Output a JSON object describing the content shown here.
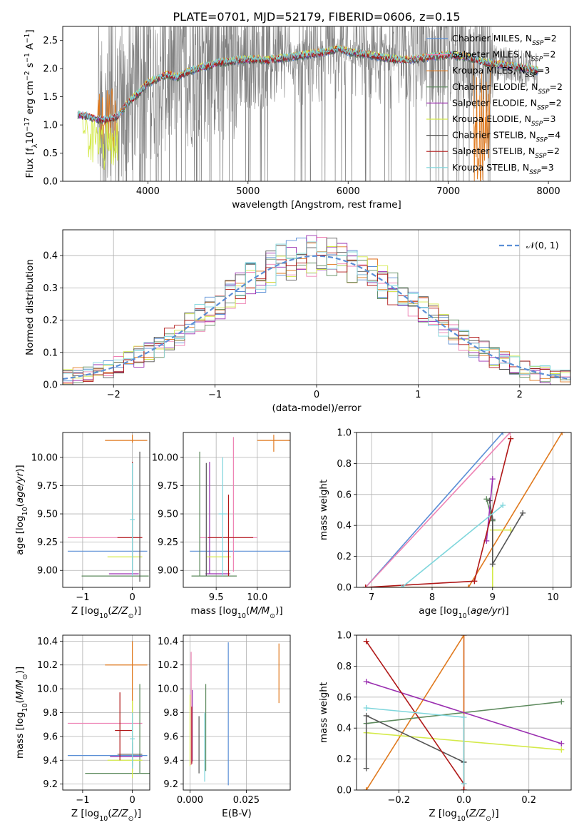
{
  "figure": {
    "title": "PLATE=0701, MJD=52179, FIBERID=0606, z=0.15"
  },
  "colors": {
    "Chabrier MILES": "#5b8fd6",
    "Salpeter MILES": "#ee82b4",
    "Kroupa MILES": "#e07a1f",
    "Chabrier ELODIE": "#5d8a5d",
    "Salpeter ELODIE": "#9a2fb0",
    "Kroupa ELODIE": "#d4ea4a",
    "Chabrier STELIB": "#555555",
    "Salpeter STELIB": "#b01818",
    "Kroupa STELIB": "#7fd6dc",
    "data": "#7f7f7f",
    "gauss": "#5b8fd6"
  },
  "chart_data": [
    {
      "id": "spectrum",
      "type": "line",
      "xlabel": "wavelength [Angstrom, rest frame]",
      "ylabel": "Flux [f_λ10^-17 erg cm^-2 s^-1 A^-1]",
      "xlim": [
        3150,
        8220
      ],
      "ylim": [
        0,
        2.75
      ],
      "xticks": [
        4000,
        5000,
        6000,
        7000,
        8000
      ],
      "yticks": [
        0.0,
        0.5,
        1.0,
        1.5,
        2.0,
        2.5
      ],
      "legend": "upper-right",
      "data_series": {
        "name": "data",
        "x_range": [
          3300,
          7900
        ]
      },
      "continuum_points": [
        [
          3300,
          1.18
        ],
        [
          3400,
          1.15
        ],
        [
          3500,
          1.1
        ],
        [
          3600,
          1.1
        ],
        [
          3700,
          1.15
        ],
        [
          3800,
          1.4
        ],
        [
          3900,
          1.55
        ],
        [
          4000,
          1.75
        ],
        [
          4100,
          1.82
        ],
        [
          4200,
          1.9
        ],
        [
          4300,
          1.85
        ],
        [
          4400,
          1.95
        ],
        [
          4500,
          2.0
        ],
        [
          4700,
          2.1
        ],
        [
          4900,
          2.15
        ],
        [
          5100,
          2.17
        ],
        [
          5200,
          2.15
        ],
        [
          5400,
          2.2
        ],
        [
          5600,
          2.25
        ],
        [
          5800,
          2.3
        ],
        [
          5900,
          2.35
        ],
        [
          6000,
          2.3
        ],
        [
          6200,
          2.25
        ],
        [
          6400,
          2.18
        ],
        [
          6600,
          2.15
        ],
        [
          6800,
          2.2
        ],
        [
          7000,
          2.25
        ],
        [
          7200,
          2.2
        ],
        [
          7400,
          2.1
        ],
        [
          7600,
          2.05
        ],
        [
          7800,
          2.0
        ],
        [
          7900,
          1.95
        ]
      ],
      "legend_entries": [
        {
          "name": "Chabrier MILES",
          "label": "Chabrier MILES, N",
          "sub": "SSP",
          "suffix": "=2"
        },
        {
          "name": "Salpeter MILES",
          "label": "Salpeter MILES, N",
          "sub": "SSP",
          "suffix": "=2"
        },
        {
          "name": "Kroupa MILES",
          "label": "Kroupa MILES, N",
          "sub": "SSP",
          "suffix": "=3"
        },
        {
          "name": "Chabrier ELODIE",
          "label": "Chabrier ELODIE, N",
          "sub": "SSP",
          "suffix": "=2"
        },
        {
          "name": "Salpeter ELODIE",
          "label": "Salpeter ELODIE, N",
          "sub": "SSP",
          "suffix": "=2"
        },
        {
          "name": "Kroupa ELODIE",
          "label": "Kroupa ELODIE, N",
          "sub": "SSP",
          "suffix": "=3"
        },
        {
          "name": "Chabrier STELIB",
          "label": "Chabrier STELIB, N",
          "sub": "SSP",
          "suffix": "=4"
        },
        {
          "name": "Salpeter STELIB",
          "label": "Salpeter STELIB, N",
          "sub": "SSP",
          "suffix": "=2"
        },
        {
          "name": "Kroupa STELIB",
          "label": "Kroupa STELIB, N",
          "sub": "SSP",
          "suffix": "=3"
        }
      ]
    },
    {
      "id": "residuals",
      "type": "line",
      "xlabel": "(data-model)/error",
      "ylabel": "Normed distribution",
      "xlim": [
        -2.5,
        2.5
      ],
      "ylim": [
        0,
        0.48
      ],
      "xticks": [
        -2,
        -1,
        0,
        1,
        2
      ],
      "yticks": [
        0.0,
        0.1,
        0.2,
        0.3,
        0.4
      ],
      "legend": "upper-right",
      "legend_label": "𝒩(0, 1)",
      "bin_width": 0.1,
      "grid": true
    },
    {
      "id": "age_vs_Z",
      "type": "scatter",
      "xlabel": "Z [log10(Z/Z_sun)]",
      "ylabel": "age  [log10(age/yr)]",
      "xlim": [
        -1.4,
        0.35
      ],
      "ylim": [
        8.85,
        10.22
      ],
      "xticks": [
        -1,
        0
      ],
      "yticks": [
        9.0,
        9.25,
        9.5,
        9.75,
        10.0
      ],
      "grid": true,
      "points": [
        {
          "name": "Chabrier MILES",
          "x": 0.0,
          "xerr": [
            1.3,
            0.3
          ],
          "y": 9.17,
          "yerr": [
            0,
            0
          ]
        },
        {
          "name": "Salpeter MILES",
          "x": 0.0,
          "xerr": [
            1.3,
            0.2
          ],
          "y": 9.29,
          "yerr": [
            0,
            0
          ]
        },
        {
          "name": "Kroupa MILES",
          "x": 0.0,
          "xerr": [
            0.55,
            0.3
          ],
          "y": 10.15,
          "yerr": [
            0.02,
            0.05
          ]
        },
        {
          "name": "Chabrier ELODIE",
          "x": -0.02,
          "xerr": [
            1.0,
            0.35
          ],
          "y": 8.95,
          "yerr": [
            0,
            0
          ]
        },
        {
          "name": "Salpeter ELODIE",
          "x": -0.02,
          "xerr": [
            0.45,
            0.15
          ],
          "y": 8.97,
          "yerr": [
            0,
            0
          ]
        },
        {
          "name": "Kroupa ELODIE",
          "x": 0.0,
          "xerr": [
            0.5,
            0.2
          ],
          "y": 9.12,
          "yerr": [
            0,
            0
          ]
        },
        {
          "name": "Chabrier STELIB",
          "x": 0.15,
          "xerr": [
            0,
            0
          ],
          "y": 9.5,
          "yerr": [
            0.6,
            0.55
          ]
        },
        {
          "name": "Salpeter STELIB",
          "x": 0.0,
          "xerr": [
            0.3,
            0.2
          ],
          "y": 9.29,
          "yerr": [
            0.3,
            0.67
          ]
        },
        {
          "name": "Kroupa STELIB",
          "x": 0.0,
          "xerr": [
            0.05,
            0.05
          ],
          "y": 9.45,
          "yerr": [
            0.5,
            0.5
          ]
        }
      ]
    },
    {
      "id": "age_vs_mass",
      "type": "scatter",
      "xlabel": "mass [log10(M/M_sun)]",
      "ylabel": "",
      "xlim": [
        9.1,
        10.4
      ],
      "ylim": [
        8.85,
        10.22
      ],
      "xticks": [
        9.5,
        10.0
      ],
      "yticks": [
        9.0,
        9.25,
        9.5,
        9.75,
        10.0
      ],
      "grid": true,
      "points": [
        {
          "name": "Chabrier MILES",
          "x": 9.44,
          "xerr": [
            0.26,
            0.96
          ],
          "y": 9.17,
          "yerr": [
            0,
            0
          ]
        },
        {
          "name": "Salpeter MILES",
          "x": 9.71,
          "xerr": [
            0.41,
            0.29
          ],
          "y": 9.29,
          "yerr": [
            0.3,
            0.89
          ]
        },
        {
          "name": "Kroupa MILES",
          "x": 10.2,
          "xerr": [
            0.2,
            0.2
          ],
          "y": 10.15,
          "yerr": [
            0.1,
            0.05
          ]
        },
        {
          "name": "Chabrier ELODIE",
          "x": 9.3,
          "xerr": [
            0.1,
            0.45
          ],
          "y": 8.95,
          "yerr": [
            0,
            1.1
          ]
        },
        {
          "name": "Salpeter ELODIE",
          "x": 9.42,
          "xerr": [
            0.05,
            0.25
          ],
          "y": 8.97,
          "yerr": [
            0,
            0.99
          ]
        },
        {
          "name": "Kroupa ELODIE",
          "x": 9.48,
          "xerr": [
            0.1,
            0.2
          ],
          "y": 9.12,
          "yerr": [
            0,
            0
          ]
        },
        {
          "name": "Chabrier STELIB",
          "x": 9.38,
          "xerr": [
            0,
            0
          ],
          "y": 9.5,
          "yerr": [
            0.55,
            0.45
          ]
        },
        {
          "name": "Salpeter STELIB",
          "x": 9.65,
          "xerr": [
            0.25,
            0.3
          ],
          "y": 9.29,
          "yerr": [
            0.34,
            0.38
          ]
        },
        {
          "name": "Kroupa STELIB",
          "x": 9.58,
          "xerr": [
            0.05,
            0.05
          ],
          "y": 9.5,
          "yerr": [
            0.55,
            0.5
          ]
        }
      ]
    },
    {
      "id": "weight_vs_age",
      "type": "line",
      "xlabel": "age  [log10(age/yr)]",
      "ylabel": "mass weight",
      "xlim": [
        6.75,
        10.3
      ],
      "ylim": [
        0,
        1.0
      ],
      "xticks": [
        7,
        8,
        9,
        10
      ],
      "yticks": [
        0.0,
        0.2,
        0.4,
        0.6,
        0.8,
        1.0
      ],
      "grid": true,
      "series": [
        {
          "name": "Chabrier MILES",
          "x": [
            6.9,
            9.17
          ],
          "y": [
            0.0,
            1.0
          ]
        },
        {
          "name": "Salpeter MILES",
          "x": [
            6.9,
            9.29
          ],
          "y": [
            0.0,
            1.0
          ]
        },
        {
          "name": "Kroupa MILES",
          "x": [
            6.9,
            8.6,
            10.15
          ],
          "y": [
            0.0,
            0.0,
            1.0
          ]
        },
        {
          "name": "Chabrier ELODIE",
          "x": [
            8.9,
            9.0
          ],
          "y": [
            0.57,
            0.43
          ]
        },
        {
          "name": "Salpeter ELODIE",
          "x": [
            8.9,
            9.0
          ],
          "y": [
            0.3,
            0.7
          ]
        },
        {
          "name": "Kroupa ELODIE",
          "x": [
            9.0,
            9.0,
            9.3
          ],
          "y": [
            0.0,
            0.37,
            0.37
          ]
        },
        {
          "name": "Chabrier STELIB",
          "x": [
            8.95,
            9.0,
            9.0,
            9.5
          ],
          "y": [
            0.56,
            0.44,
            0.15,
            0.48
          ]
        },
        {
          "name": "Salpeter STELIB",
          "x": [
            6.9,
            8.7,
            9.3
          ],
          "y": [
            0.0,
            0.04,
            0.96
          ]
        },
        {
          "name": "Kroupa STELIB",
          "x": [
            7.5,
            9.17
          ],
          "y": [
            0.0,
            0.53
          ]
        }
      ]
    },
    {
      "id": "mass_vs_Z",
      "type": "scatter",
      "xlabel": "Z [log10(Z/Z_sun)]",
      "ylabel": "mass [log10(M/M_sun)]",
      "xlim": [
        -1.4,
        0.35
      ],
      "ylim": [
        9.15,
        10.45
      ],
      "xticks": [
        -1,
        0
      ],
      "yticks": [
        9.2,
        9.4,
        9.6,
        9.8,
        10.0,
        10.2,
        10.4
      ],
      "grid": true,
      "points": [
        {
          "name": "Chabrier MILES",
          "x": 0.0,
          "xerr": [
            1.3,
            0.3
          ],
          "y": 9.44,
          "yerr": [
            0,
            0
          ]
        },
        {
          "name": "Salpeter MILES",
          "x": 0.0,
          "xerr": [
            1.3,
            0.2
          ],
          "y": 9.71,
          "yerr": [
            0,
            0
          ]
        },
        {
          "name": "Kroupa MILES",
          "x": 0.0,
          "xerr": [
            0.55,
            0.3
          ],
          "y": 10.2,
          "yerr": [
            0.9,
            0.2
          ]
        },
        {
          "name": "Chabrier ELODIE",
          "x": 0.15,
          "xerr": [
            1.1,
            0.2
          ],
          "y": 9.29,
          "yerr": [
            0,
            0.75
          ]
        },
        {
          "name": "Salpeter ELODIE",
          "x": 0.0,
          "xerr": [
            0.45,
            0.2
          ],
          "y": 9.43,
          "yerr": [
            0,
            0
          ]
        },
        {
          "name": "Kroupa ELODIE",
          "x": 0.0,
          "xerr": [
            0.5,
            0.2
          ],
          "y": 9.4,
          "yerr": [
            0.15,
            0.5
          ]
        },
        {
          "name": "Chabrier STELIB",
          "x": 0.0,
          "xerr": [
            0.3,
            0.2
          ],
          "y": 9.45,
          "yerr": [
            0.1,
            0.1
          ]
        },
        {
          "name": "Salpeter STELIB",
          "x": -0.25,
          "xerr": [
            0.1,
            0.25
          ],
          "y": 9.65,
          "yerr": [
            0.25,
            0.32
          ]
        },
        {
          "name": "Kroupa STELIB",
          "x": 0.0,
          "xerr": [
            0.05,
            0.05
          ],
          "y": 9.58,
          "yerr": [
            0.25,
            0.22
          ]
        }
      ]
    },
    {
      "id": "mass_vs_ebv",
      "type": "scatter",
      "xlabel": "E(B-V)",
      "ylabel": "",
      "xlim": [
        -0.003,
        0.0445
      ],
      "ylim": [
        9.15,
        10.45
      ],
      "xticks": [
        0.0,
        0.025
      ],
      "xtick_labels": [
        "0.000",
        "0.025"
      ],
      "yticks": [
        9.2,
        9.4,
        9.6,
        9.8,
        10.0,
        10.2,
        10.4
      ],
      "grid": true,
      "points": [
        {
          "name": "Chabrier MILES",
          "x": 0.017,
          "xerr": [
            0,
            0
          ],
          "y": 9.79,
          "yerr": [
            0.6,
            0.6
          ]
        },
        {
          "name": "Salpeter MILES",
          "x": 0.0005,
          "xerr": [
            0,
            0
          ],
          "y": 9.86,
          "yerr": [
            0.5,
            0.45
          ]
        },
        {
          "name": "Kroupa MILES",
          "x": 0.0395,
          "xerr": [
            0,
            0
          ],
          "y": 10.13,
          "yerr": [
            0.25,
            0.25
          ]
        },
        {
          "name": "Chabrier ELODIE",
          "x": 0.007,
          "xerr": [
            0,
            0
          ],
          "y": 9.67,
          "yerr": [
            0.36,
            0.37
          ]
        },
        {
          "name": "Salpeter ELODIE",
          "x": 0.001,
          "xerr": [
            0,
            0
          ],
          "y": 9.69,
          "yerr": [
            0.3,
            0.3
          ]
        },
        {
          "name": "Kroupa ELODIE",
          "x": 0.0,
          "xerr": [
            0,
            0
          ],
          "y": 9.65,
          "yerr": [
            0.3,
            0.3
          ]
        },
        {
          "name": "Chabrier STELIB",
          "x": 0.004,
          "xerr": [
            0,
            0
          ],
          "y": 9.53,
          "yerr": [
            0.24,
            0.24
          ]
        },
        {
          "name": "Salpeter STELIB",
          "x": 0.0008,
          "xerr": [
            0,
            0
          ],
          "y": 9.62,
          "yerr": [
            0.25,
            0.23
          ]
        },
        {
          "name": "Kroupa STELIB",
          "x": 0.0065,
          "xerr": [
            0,
            0
          ],
          "y": 9.47,
          "yerr": [
            0.25,
            0.33
          ]
        }
      ]
    },
    {
      "id": "weight_vs_Z",
      "type": "line",
      "xlabel": "Z [log10(Z/Z_sun)]",
      "ylabel": "mass weight",
      "xlim": [
        -0.33,
        0.33
      ],
      "ylim": [
        0,
        1.0
      ],
      "xticks": [
        -0.2,
        0.0,
        0.2
      ],
      "xtick_labels": [
        "−0.2",
        "0.0",
        "0.2"
      ],
      "yticks": [
        0.0,
        0.2,
        0.4,
        0.6,
        0.8,
        1.0
      ],
      "grid": true,
      "series": [
        {
          "name": "Chabrier MILES",
          "x": [
            0.0,
            0.0
          ],
          "y": [
            0.0,
            1.0
          ]
        },
        {
          "name": "Salpeter MILES",
          "x": [
            0.0,
            0.0
          ],
          "y": [
            0.0,
            1.0
          ]
        },
        {
          "name": "Kroupa MILES",
          "x": [
            -0.3,
            0.0,
            0.0
          ],
          "y": [
            0.0,
            1.0,
            0.0
          ]
        },
        {
          "name": "Chabrier ELODIE",
          "x": [
            -0.3,
            0.3
          ],
          "y": [
            0.43,
            0.57
          ]
        },
        {
          "name": "Salpeter ELODIE",
          "x": [
            -0.3,
            0.3
          ],
          "y": [
            0.7,
            0.3
          ]
        },
        {
          "name": "Kroupa ELODIE",
          "x": [
            -0.3,
            0.3
          ],
          "y": [
            0.37,
            0.26
          ]
        },
        {
          "name": "Chabrier STELIB",
          "x": [
            -0.3,
            -0.3,
            0.0,
            0.0
          ],
          "y": [
            0.14,
            0.48,
            0.18,
            0.18
          ]
        },
        {
          "name": "Salpeter STELIB",
          "x": [
            -0.3,
            0.0,
            0.0
          ],
          "y": [
            0.96,
            0.04,
            0.0
          ]
        },
        {
          "name": "Kroupa STELIB",
          "x": [
            -0.3,
            0.0,
            0.0
          ],
          "y": [
            0.53,
            0.47,
            0.04
          ]
        }
      ]
    }
  ]
}
